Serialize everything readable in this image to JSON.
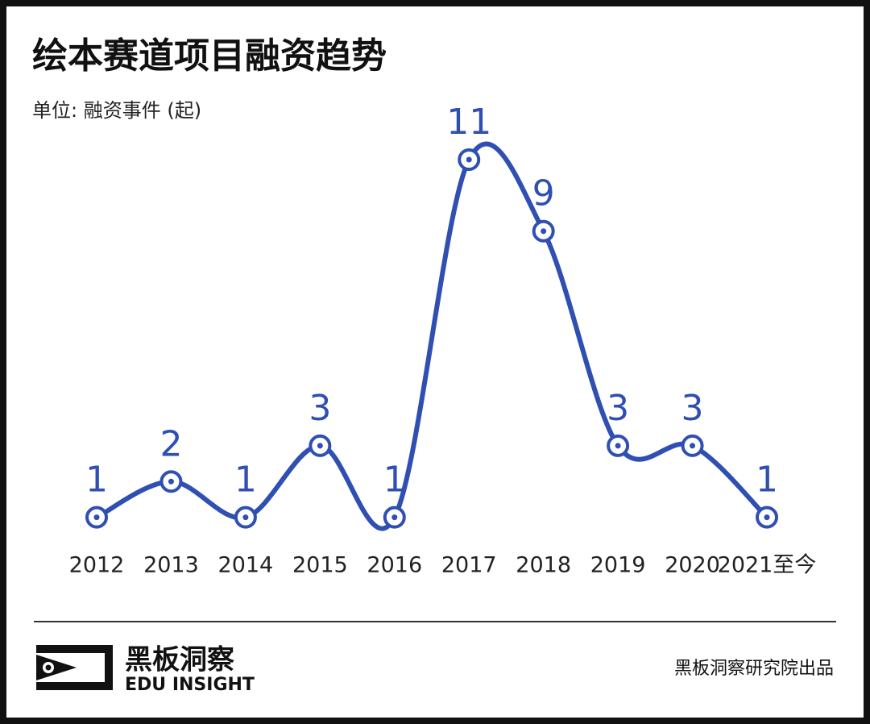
{
  "chart_data": {
    "type": "line",
    "title": "绘本赛道项目融资趋势",
    "subtitle": "单位: 融资事件 (起)",
    "categories": [
      "2012",
      "2013",
      "2014",
      "2015",
      "2016",
      "2017",
      "2018",
      "2019",
      "2020",
      "2021至今"
    ],
    "values": [
      1,
      2,
      1,
      3,
      1,
      11,
      9,
      3,
      3,
      1
    ],
    "color": "#2f4fb2"
  },
  "footer": {
    "brand": "黑板洞察",
    "brand_en": "EDU INSIGHT",
    "credit": "黑板洞察研究院出品"
  }
}
